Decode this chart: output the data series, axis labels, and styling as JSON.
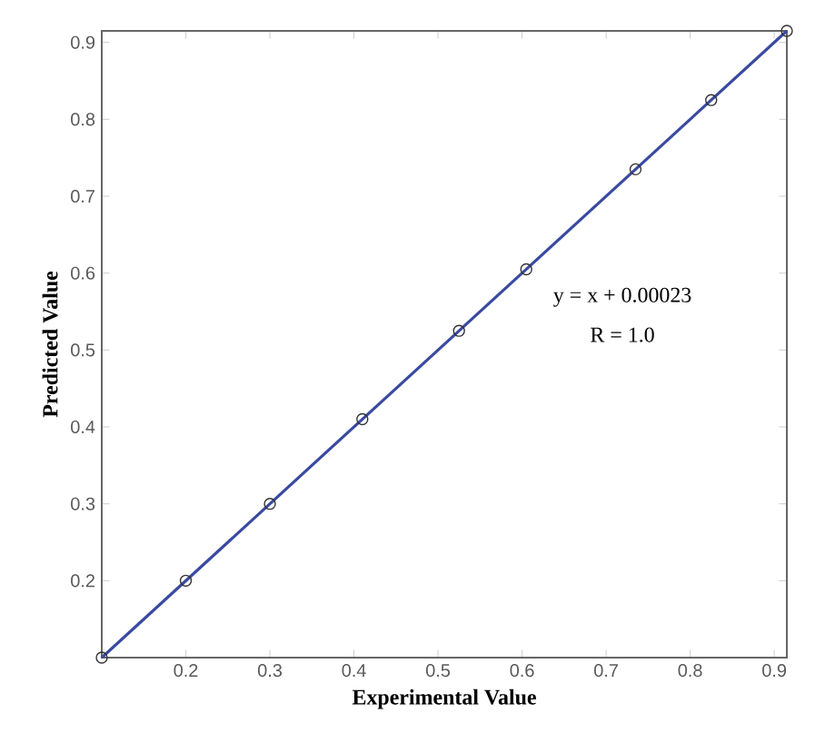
{
  "chart_data": {
    "type": "scatter",
    "xlabel": "Experimental Value",
    "ylabel": "Predicted Value",
    "x": [
      0.1,
      0.2,
      0.3,
      0.41,
      0.525,
      0.605,
      0.735,
      0.825,
      0.915
    ],
    "series": [
      {
        "color": "#333333",
        "marker": "circle",
        "values": [
          0.1,
          0.2,
          0.3,
          0.41,
          0.525,
          0.605,
          0.735,
          0.825,
          0.915
        ]
      },
      {
        "type": "line",
        "color": "#3a4aa0",
        "line_style": "solid",
        "x": [
          0.1,
          0.915
        ],
        "values": [
          0.1,
          0.915
        ]
      }
    ],
    "xlim": [
      0.1,
      0.915
    ],
    "ylim": [
      0.1,
      0.915
    ],
    "xticks": [
      0.2,
      0.3,
      0.4,
      0.5,
      0.6,
      0.7,
      0.8,
      0.9
    ],
    "yticks": [
      0.2,
      0.3,
      0.4,
      0.5,
      0.6,
      0.7,
      0.8,
      0.9
    ],
    "grid": false,
    "annotations": [
      "y = x + 0.00023",
      "R = 1.0"
    ]
  }
}
